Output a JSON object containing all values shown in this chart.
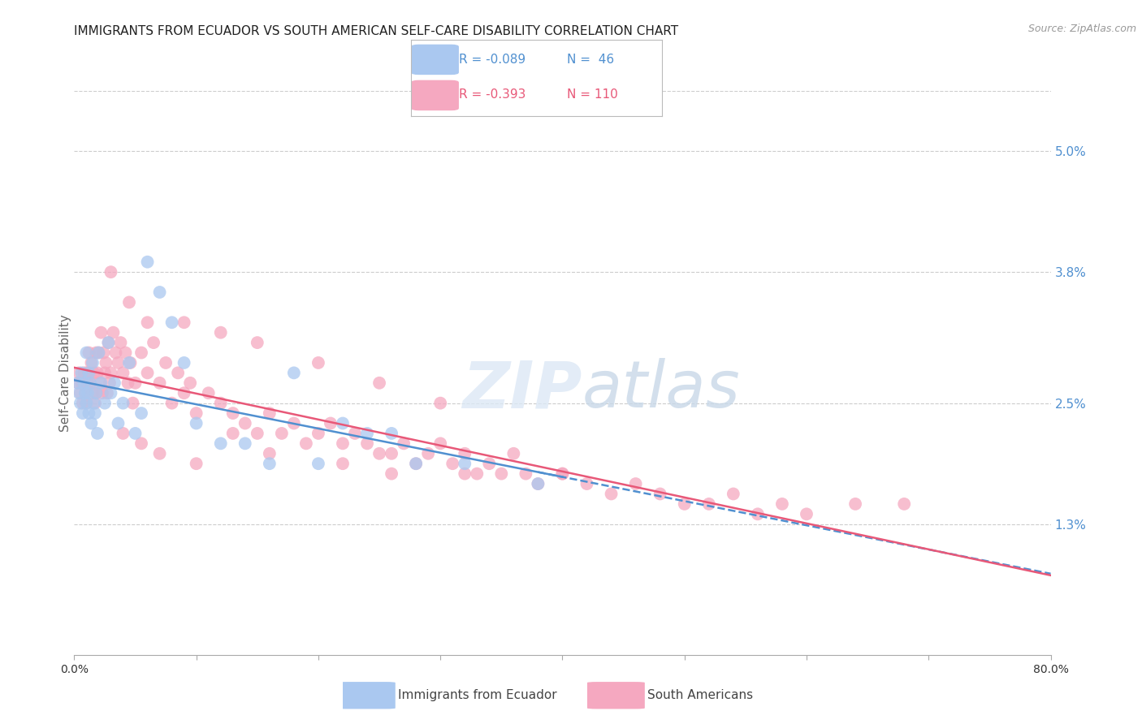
{
  "title": "IMMIGRANTS FROM ECUADOR VS SOUTH AMERICAN SELF-CARE DISABILITY CORRELATION CHART",
  "source": "Source: ZipAtlas.com",
  "ylabel": "Self-Care Disability",
  "xlim": [
    0.0,
    0.8
  ],
  "ylim": [
    0.0,
    0.056
  ],
  "yticks": [
    0.013,
    0.025,
    0.038,
    0.05
  ],
  "ytick_labels": [
    "1.3%",
    "2.5%",
    "3.8%",
    "5.0%"
  ],
  "xtick_labels": [
    "0.0%",
    "80.0%"
  ],
  "ecuador_R": -0.089,
  "ecuador_N": 46,
  "sa_R": -0.393,
  "sa_N": 110,
  "ecuador_color": "#aac8f0",
  "sa_color": "#f5a8c0",
  "ecuador_line_color": "#5090d0",
  "sa_line_color": "#e85878",
  "grid_color": "#cccccc",
  "watermark": "ZIPatlas",
  "background_color": "#ffffff",
  "title_color": "#222222",
  "right_tick_color": "#5090d0",
  "ecuador_scatter_x": [
    0.003,
    0.004,
    0.005,
    0.006,
    0.007,
    0.008,
    0.009,
    0.01,
    0.01,
    0.011,
    0.012,
    0.012,
    0.013,
    0.014,
    0.015,
    0.016,
    0.017,
    0.018,
    0.019,
    0.02,
    0.022,
    0.025,
    0.028,
    0.03,
    0.033,
    0.036,
    0.04,
    0.045,
    0.05,
    0.055,
    0.06,
    0.07,
    0.08,
    0.09,
    0.1,
    0.12,
    0.14,
    0.16,
    0.18,
    0.2,
    0.22,
    0.24,
    0.26,
    0.28,
    0.32,
    0.38
  ],
  "ecuador_scatter_y": [
    0.027,
    0.026,
    0.025,
    0.028,
    0.024,
    0.027,
    0.026,
    0.025,
    0.03,
    0.026,
    0.028,
    0.024,
    0.027,
    0.023,
    0.029,
    0.025,
    0.024,
    0.026,
    0.022,
    0.03,
    0.027,
    0.025,
    0.031,
    0.026,
    0.027,
    0.023,
    0.025,
    0.029,
    0.022,
    0.024,
    0.039,
    0.036,
    0.033,
    0.029,
    0.023,
    0.021,
    0.021,
    0.019,
    0.028,
    0.019,
    0.023,
    0.022,
    0.022,
    0.019,
    0.019,
    0.017
  ],
  "sa_scatter_x": [
    0.003,
    0.004,
    0.005,
    0.006,
    0.007,
    0.008,
    0.009,
    0.01,
    0.01,
    0.011,
    0.012,
    0.013,
    0.014,
    0.015,
    0.016,
    0.017,
    0.018,
    0.018,
    0.019,
    0.02,
    0.021,
    0.022,
    0.023,
    0.024,
    0.025,
    0.026,
    0.027,
    0.028,
    0.029,
    0.03,
    0.032,
    0.034,
    0.036,
    0.038,
    0.04,
    0.042,
    0.044,
    0.046,
    0.048,
    0.05,
    0.055,
    0.06,
    0.065,
    0.07,
    0.075,
    0.08,
    0.085,
    0.09,
    0.095,
    0.1,
    0.11,
    0.12,
    0.13,
    0.14,
    0.15,
    0.16,
    0.17,
    0.18,
    0.19,
    0.2,
    0.21,
    0.22,
    0.23,
    0.24,
    0.25,
    0.26,
    0.27,
    0.28,
    0.29,
    0.3,
    0.31,
    0.32,
    0.33,
    0.34,
    0.35,
    0.36,
    0.37,
    0.38,
    0.4,
    0.42,
    0.44,
    0.46,
    0.48,
    0.5,
    0.52,
    0.54,
    0.56,
    0.58,
    0.6,
    0.64,
    0.68,
    0.03,
    0.045,
    0.06,
    0.09,
    0.12,
    0.15,
    0.2,
    0.25,
    0.3,
    0.04,
    0.055,
    0.07,
    0.1,
    0.13,
    0.16,
    0.22,
    0.26,
    0.32,
    0.4
  ],
  "sa_scatter_y": [
    0.027,
    0.028,
    0.026,
    0.027,
    0.025,
    0.028,
    0.026,
    0.028,
    0.025,
    0.027,
    0.03,
    0.027,
    0.029,
    0.026,
    0.028,
    0.025,
    0.03,
    0.026,
    0.028,
    0.03,
    0.027,
    0.032,
    0.026,
    0.03,
    0.028,
    0.029,
    0.026,
    0.031,
    0.027,
    0.028,
    0.032,
    0.03,
    0.029,
    0.031,
    0.028,
    0.03,
    0.027,
    0.029,
    0.025,
    0.027,
    0.03,
    0.028,
    0.031,
    0.027,
    0.029,
    0.025,
    0.028,
    0.026,
    0.027,
    0.024,
    0.026,
    0.025,
    0.024,
    0.023,
    0.022,
    0.024,
    0.022,
    0.023,
    0.021,
    0.022,
    0.023,
    0.021,
    0.022,
    0.021,
    0.02,
    0.02,
    0.021,
    0.019,
    0.02,
    0.021,
    0.019,
    0.02,
    0.018,
    0.019,
    0.018,
    0.02,
    0.018,
    0.017,
    0.018,
    0.017,
    0.016,
    0.017,
    0.016,
    0.015,
    0.015,
    0.016,
    0.014,
    0.015,
    0.014,
    0.015,
    0.015,
    0.038,
    0.035,
    0.033,
    0.033,
    0.032,
    0.031,
    0.029,
    0.027,
    0.025,
    0.022,
    0.021,
    0.02,
    0.019,
    0.022,
    0.02,
    0.019,
    0.018,
    0.018,
    0.018
  ]
}
